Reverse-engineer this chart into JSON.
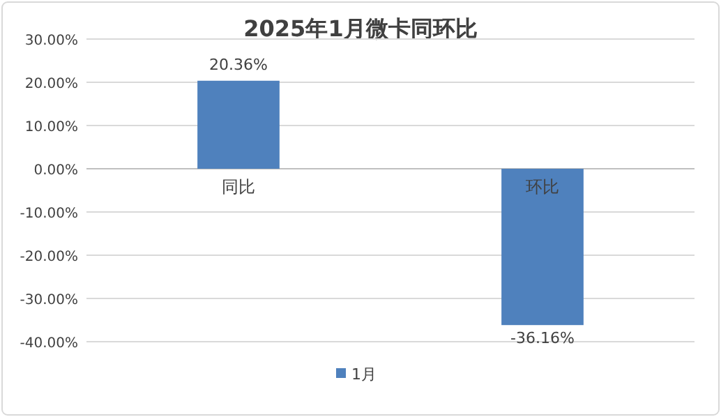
{
  "chart_data": {
    "type": "bar",
    "title": "2025年1月微卡同环比",
    "categories": [
      "同比",
      "环比"
    ],
    "series": [
      {
        "name": "1月",
        "color": "#4f81bd",
        "values": [
          20.36,
          -36.16
        ]
      }
    ],
    "value_labels": [
      "20.36%",
      "-36.16%"
    ],
    "ylim": [
      -40,
      30
    ],
    "yticks": [
      {
        "value": -40,
        "label": "-40.00%"
      },
      {
        "value": -30,
        "label": "-30.00%"
      },
      {
        "value": -20,
        "label": "-20.00%"
      },
      {
        "value": -10,
        "label": "-10.00%"
      },
      {
        "value": 0,
        "label": "0.00%"
      },
      {
        "value": 10,
        "label": "10.00%"
      },
      {
        "value": 20,
        "label": "20.00%"
      },
      {
        "value": 30,
        "label": "30.00%"
      }
    ],
    "grid": "y",
    "legend": "bottom"
  }
}
